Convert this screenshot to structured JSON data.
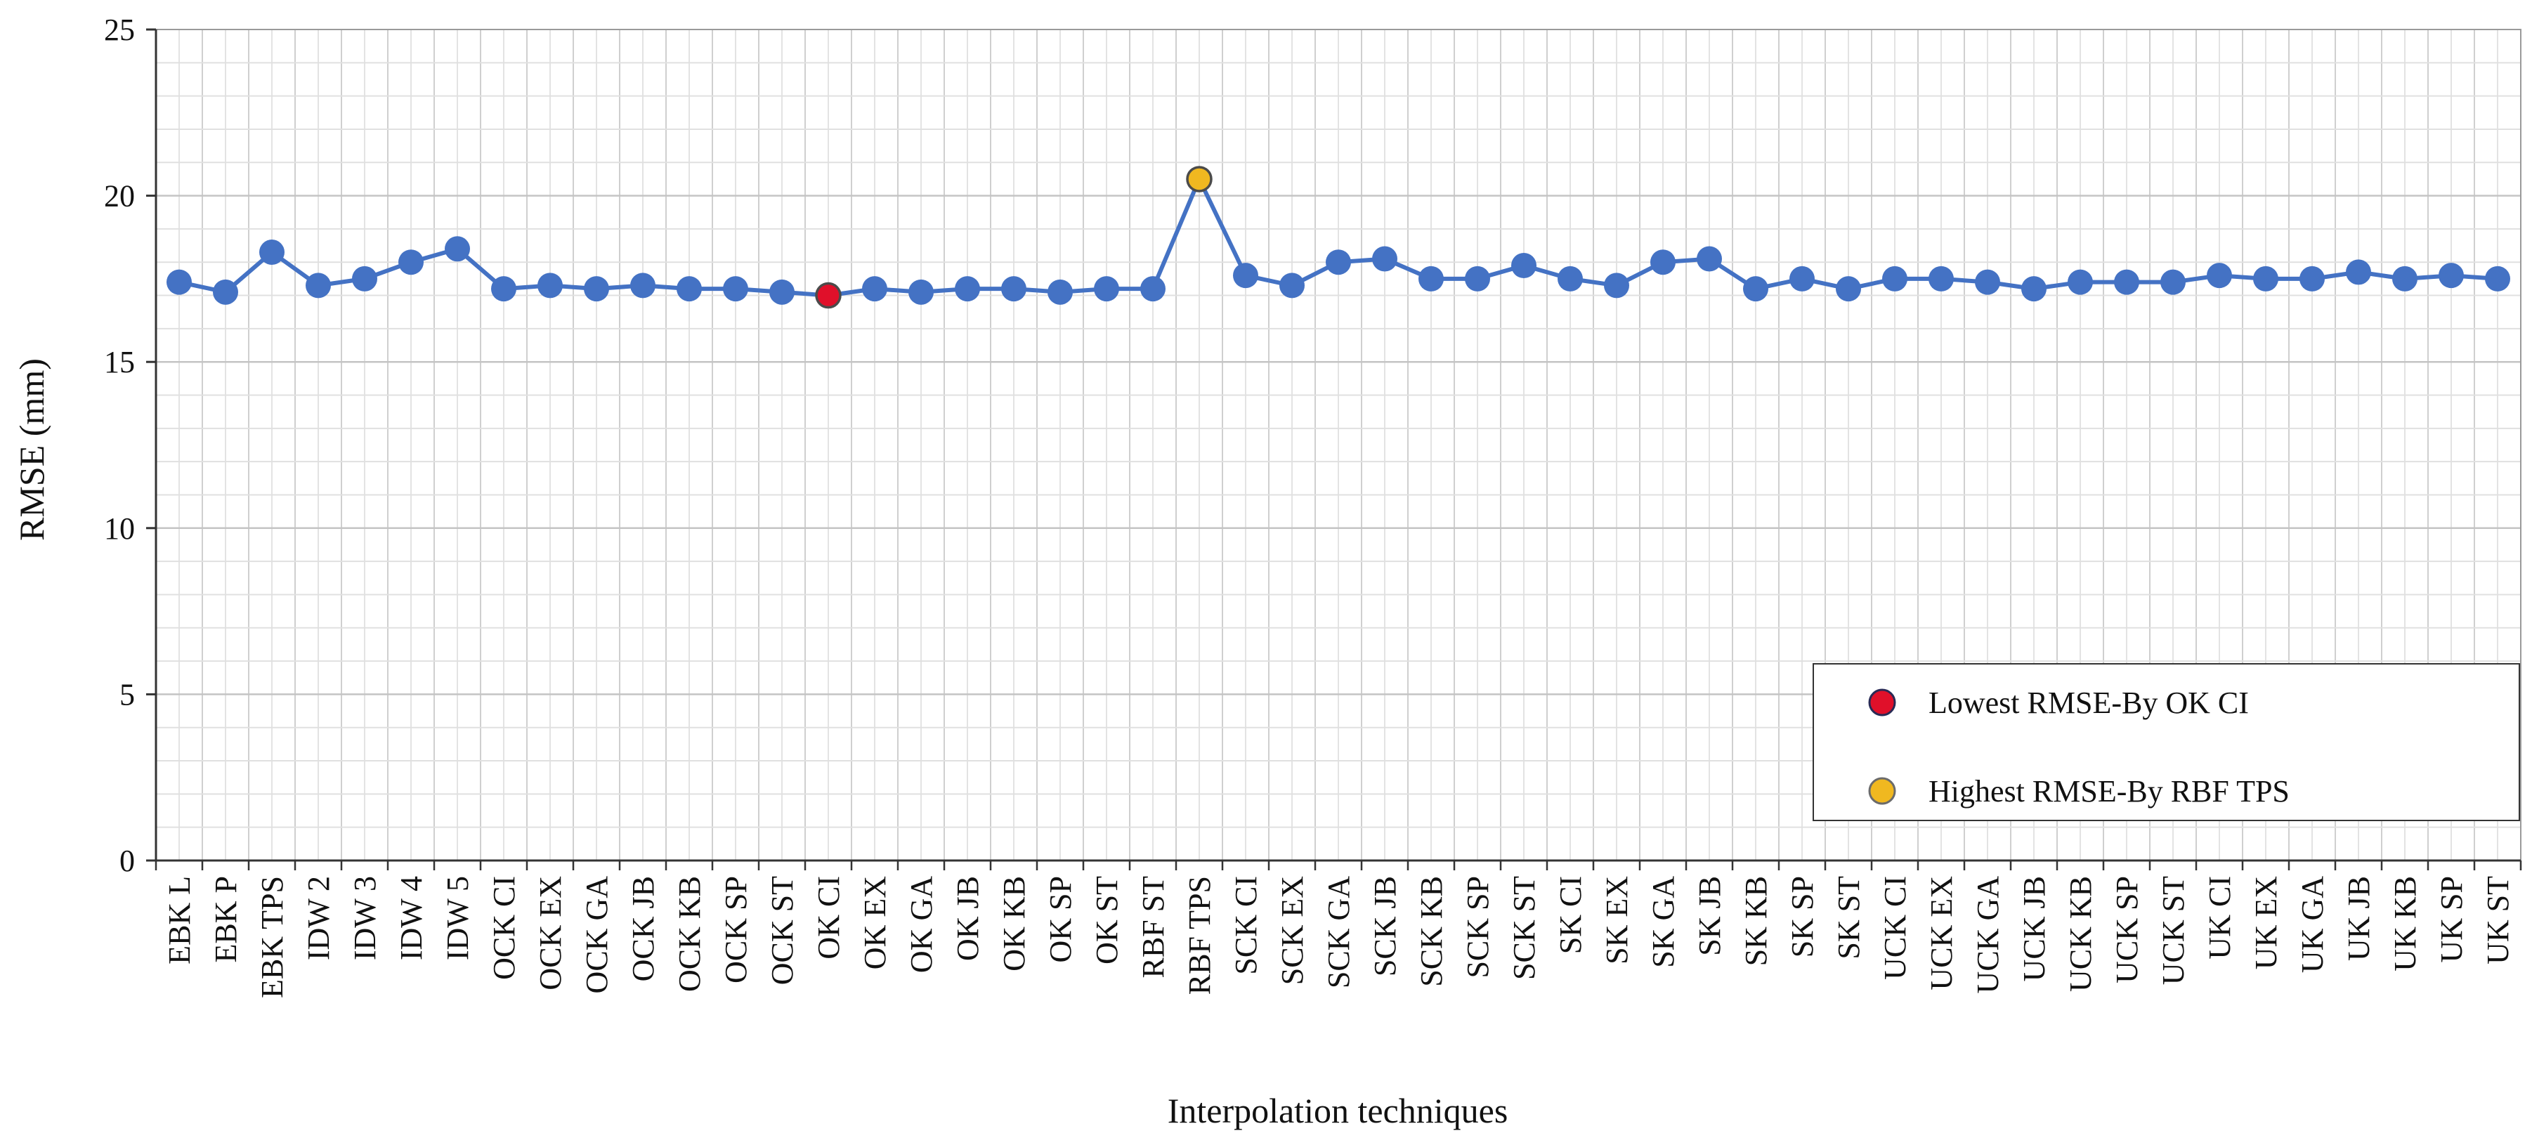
{
  "chart_data": {
    "type": "line",
    "title": "",
    "xlabel": "Interpolation techniques",
    "ylabel": "RMSE (mm)",
    "ylim": [
      0,
      25
    ],
    "yticks": [
      0,
      5,
      10,
      15,
      20,
      25
    ],
    "grid": true,
    "legend_position": "bottom-right",
    "categories": [
      "EBK L",
      "EBK P",
      "EBK TPS",
      "IDW 2",
      "IDW 3",
      "IDW 4",
      "IDW 5",
      "OCK CI",
      "OCK EX",
      "OCK GA",
      "OCK JB",
      "OCK KB",
      "OCK SP",
      "OCK ST",
      "OK CI",
      "OK EX",
      "OK GA",
      "OK JB",
      "OK KB",
      "OK SP",
      "OK ST",
      "RBF ST",
      "RBF TPS",
      "SCK CI",
      "SCK EX",
      "SCK GA",
      "SCK JB",
      "SCK KB",
      "SCK SP",
      "SCK ST",
      "SK CI",
      "SK EX",
      "SK GA",
      "SK JB",
      "SK KB",
      "SK SP",
      "SK ST",
      "UCK CI",
      "UCK EX",
      "UCK GA",
      "UCK JB",
      "UCK KB",
      "UCK SP",
      "UCK ST",
      "UK CI",
      "UK EX",
      "UK GA",
      "UK JB",
      "UK KB",
      "UK SP",
      "UK ST"
    ],
    "series": [
      {
        "color": "#4472c4",
        "values": [
          17.4,
          17.1,
          18.3,
          17.3,
          17.5,
          18.0,
          18.4,
          17.2,
          17.3,
          17.2,
          17.3,
          17.2,
          17.2,
          17.1,
          17.0,
          17.2,
          17.1,
          17.2,
          17.2,
          17.1,
          17.2,
          17.2,
          20.5,
          17.6,
          17.3,
          18.0,
          18.1,
          17.5,
          17.5,
          17.9,
          17.5,
          17.3,
          18.0,
          18.1,
          17.2,
          17.5,
          17.2,
          17.5,
          17.5,
          17.4,
          17.2,
          17.4,
          17.4,
          17.4,
          17.6,
          17.5,
          17.5,
          17.7,
          17.5,
          17.6,
          17.5
        ]
      }
    ],
    "highlights": [
      {
        "category": "OK CI",
        "value": 17.0,
        "color": "#e0102a",
        "label": "Lowest RMSE-By OK CI"
      },
      {
        "category": "RBF TPS",
        "value": 20.5,
        "color": "#f0b820",
        "label": "Highest RMSE-By RBF TPS"
      }
    ],
    "legend": [
      {
        "label": "Lowest RMSE-By OK CI",
        "color": "#e0102a"
      },
      {
        "label": "Highest RMSE-By RBF TPS",
        "color": "#f0b820"
      }
    ]
  }
}
